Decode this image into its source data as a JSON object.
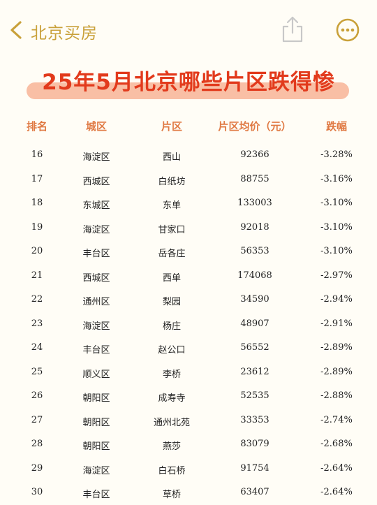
{
  "nav": {
    "title": "北京买房",
    "icons": [
      "chevron-left-icon",
      "share-icon",
      "more-icon"
    ]
  },
  "headline": "25年5月北京哪些片区跌得惨",
  "colors": {
    "accent": "#c9a13a",
    "headline": "#e23a1c",
    "highlight": "#f8b496",
    "header": "#e07a44"
  },
  "table": {
    "headers": {
      "rank": "排名",
      "district": "城区",
      "area": "片区",
      "price": "片区均价（元）",
      "drop": "跌幅"
    },
    "rows": [
      {
        "rank": "16",
        "district": "海淀区",
        "area": "西山",
        "price": "92366",
        "drop": "-3.28%"
      },
      {
        "rank": "17",
        "district": "西城区",
        "area": "白纸坊",
        "price": "88755",
        "drop": "-3.16%"
      },
      {
        "rank": "18",
        "district": "东城区",
        "area": "东单",
        "price": "133003",
        "drop": "-3.10%"
      },
      {
        "rank": "19",
        "district": "海淀区",
        "area": "甘家口",
        "price": "92018",
        "drop": "-3.10%"
      },
      {
        "rank": "20",
        "district": "丰台区",
        "area": "岳各庄",
        "price": "56353",
        "drop": "-3.10%"
      },
      {
        "rank": "21",
        "district": "西城区",
        "area": "西单",
        "price": "174068",
        "drop": "-2.97%"
      },
      {
        "rank": "22",
        "district": "通州区",
        "area": "梨园",
        "price": "34590",
        "drop": "-2.94%"
      },
      {
        "rank": "23",
        "district": "海淀区",
        "area": "杨庄",
        "price": "48907",
        "drop": "-2.91%"
      },
      {
        "rank": "24",
        "district": "丰台区",
        "area": "赵公口",
        "price": "56552",
        "drop": "-2.89%"
      },
      {
        "rank": "25",
        "district": "顺义区",
        "area": "李桥",
        "price": "23612",
        "drop": "-2.89%"
      },
      {
        "rank": "26",
        "district": "朝阳区",
        "area": "成寿寺",
        "price": "52535",
        "drop": "-2.88%"
      },
      {
        "rank": "27",
        "district": "朝阳区",
        "area": "通州北苑",
        "price": "33353",
        "drop": "-2.74%"
      },
      {
        "rank": "28",
        "district": "朝阳区",
        "area": "燕莎",
        "price": "83079",
        "drop": "-2.68%"
      },
      {
        "rank": "29",
        "district": "海淀区",
        "area": "白石桥",
        "price": "91754",
        "drop": "-2.64%"
      },
      {
        "rank": "30",
        "district": "丰台区",
        "area": "草桥",
        "price": "63407",
        "drop": "-2.64%"
      }
    ]
  }
}
